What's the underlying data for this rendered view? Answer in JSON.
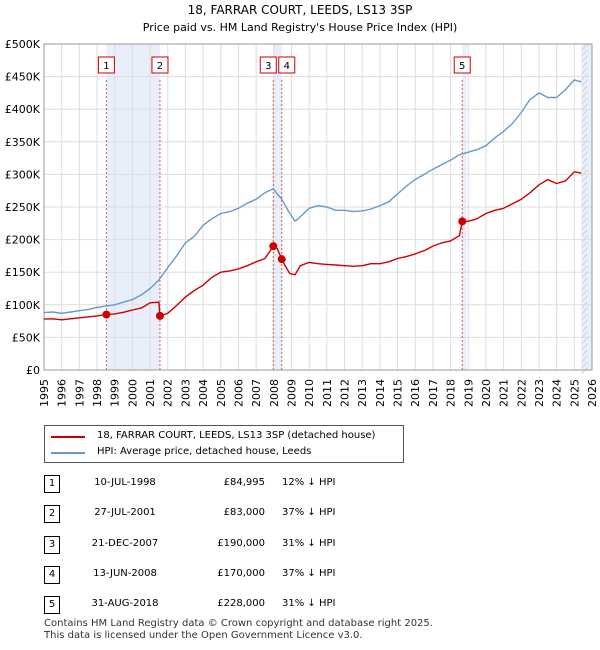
{
  "chart_data": {
    "type": "line",
    "title": "18, FARRAR COURT, LEEDS, LS13 3SP",
    "subtitle": "Price paid vs. HM Land Registry's House Price Index (HPI)",
    "xlabel": "",
    "ylabel": "",
    "xlim": [
      1995.0,
      2026.0
    ],
    "ylim": [
      0,
      500000
    ],
    "y_ticks": [
      0,
      50000,
      100000,
      150000,
      200000,
      250000,
      300000,
      350000,
      400000,
      450000,
      500000
    ],
    "y_tick_labels": [
      "£0",
      "£50K",
      "£100K",
      "£150K",
      "£200K",
      "£250K",
      "£300K",
      "£350K",
      "£400K",
      "£450K",
      "£500K"
    ],
    "x_ticks": [
      1995,
      1996,
      1997,
      1998,
      1999,
      2000,
      2001,
      2002,
      2003,
      2004,
      2005,
      2006,
      2007,
      2008,
      2009,
      2010,
      2011,
      2012,
      2013,
      2014,
      2015,
      2016,
      2017,
      2018,
      2019,
      2020,
      2021,
      2022,
      2023,
      2024,
      2025,
      2026
    ],
    "x_tick_labels": [
      "1995",
      "1996",
      "1997",
      "1998",
      "1999",
      "2000",
      "2001",
      "2002",
      "2003",
      "2004",
      "2005",
      "2006",
      "2007",
      "2008",
      "2009",
      "2010",
      "2011",
      "2012",
      "2013",
      "2014",
      "2015",
      "2016",
      "2017",
      "2018",
      "2019",
      "2020",
      "2021",
      "2022",
      "2023",
      "2024",
      "2025",
      "2026"
    ],
    "grid": true,
    "series": [
      {
        "name": "18, FARRAR COURT, LEEDS, LS13 3SP (detached house)",
        "color": "#cc0000",
        "x": [
          1995.0,
          1995.5,
          1996.0,
          1996.5,
          1997.0,
          1997.5,
          1998.0,
          1998.53,
          1999.0,
          1999.5,
          2000.0,
          2000.5,
          2001.0,
          2001.5,
          2001.56,
          2002.0,
          2002.5,
          2003.0,
          2003.5,
          2004.0,
          2004.5,
          2005.0,
          2005.5,
          2006.0,
          2006.5,
          2007.0,
          2007.5,
          2007.97,
          2008.2,
          2008.45,
          2008.6,
          2008.9,
          2009.2,
          2009.5,
          2010.0,
          2010.5,
          2011.0,
          2011.5,
          2012.0,
          2012.5,
          2013.0,
          2013.5,
          2014.0,
          2014.5,
          2015.0,
          2015.5,
          2016.0,
          2016.5,
          2017.0,
          2017.5,
          2018.0,
          2018.5,
          2018.66,
          2019.0,
          2019.5,
          2020.0,
          2020.5,
          2021.0,
          2021.5,
          2022.0,
          2022.5,
          2023.0,
          2023.5,
          2024.0,
          2024.5,
          2025.0,
          2025.4
        ],
        "values": [
          78000,
          78500,
          77000,
          78500,
          80000,
          81500,
          83000,
          84995,
          86000,
          88500,
          92000,
          95000,
          103000,
          104000,
          83000,
          87000,
          99000,
          112000,
          122000,
          130000,
          142000,
          150000,
          152000,
          155000,
          160000,
          166000,
          171000,
          190000,
          186000,
          170000,
          162000,
          148000,
          146000,
          160000,
          165000,
          163000,
          162000,
          161000,
          160000,
          159000,
          160000,
          163000,
          163000,
          166000,
          171000,
          174000,
          178000,
          183000,
          190000,
          195000,
          198000,
          206000,
          228000,
          228000,
          232000,
          240000,
          245000,
          248000,
          255000,
          262000,
          272000,
          284000,
          292000,
          286000,
          290000,
          304000,
          302000
        ]
      },
      {
        "name": "HPI: Average price, detached house, Leeds",
        "color": "#6699cc",
        "x": [
          1995.0,
          1995.5,
          1996.0,
          1996.5,
          1997.0,
          1997.5,
          1998.0,
          1998.5,
          1999.0,
          1999.5,
          2000.0,
          2000.5,
          2001.0,
          2001.5,
          2002.0,
          2002.5,
          2003.0,
          2003.5,
          2004.0,
          2004.5,
          2005.0,
          2005.5,
          2006.0,
          2006.5,
          2007.0,
          2007.5,
          2007.97,
          2008.2,
          2008.45,
          2008.8,
          2009.2,
          2009.5,
          2010.0,
          2010.5,
          2011.0,
          2011.5,
          2012.0,
          2012.5,
          2013.0,
          2013.5,
          2014.0,
          2014.5,
          2015.0,
          2015.5,
          2016.0,
          2016.5,
          2017.0,
          2017.5,
          2018.0,
          2018.5,
          2019.0,
          2019.5,
          2020.0,
          2020.5,
          2021.0,
          2021.5,
          2022.0,
          2022.5,
          2023.0,
          2023.5,
          2024.0,
          2024.5,
          2025.0,
          2025.4
        ],
        "values": [
          88000,
          89000,
          87000,
          89000,
          91000,
          93000,
          96000,
          98000,
          100000,
          104000,
          108000,
          115000,
          125000,
          138000,
          157000,
          175000,
          195000,
          205000,
          222000,
          232000,
          240000,
          243000,
          248000,
          256000,
          262000,
          272000,
          278000,
          270000,
          262000,
          245000,
          228000,
          235000,
          248000,
          252000,
          250000,
          245000,
          245000,
          243000,
          244000,
          247000,
          252000,
          258000,
          270000,
          282000,
          292000,
          300000,
          308000,
          315000,
          322000,
          330000,
          334000,
          338000,
          344000,
          356000,
          366000,
          378000,
          395000,
          415000,
          425000,
          418000,
          418000,
          430000,
          445000,
          442000
        ]
      }
    ],
    "sales": [
      {
        "label": "1",
        "x": 1998.53,
        "value": 84995
      },
      {
        "label": "2",
        "x": 2001.56,
        "value": 83000
      },
      {
        "label": "3",
        "x": 2007.97,
        "value": 190000
      },
      {
        "label": "4",
        "x": 2008.45,
        "value": 170000
      },
      {
        "label": "5",
        "x": 2018.66,
        "value": 228000
      }
    ],
    "shaded_ranges": [
      [
        1998.53,
        2001.56
      ],
      [
        2007.97,
        2008.45
      ],
      [
        2018.66,
        2018.9
      ],
      [
        2025.4,
        2026.0
      ]
    ]
  },
  "legend": {
    "property_label": "18, FARRAR COURT, LEEDS, LS13 3SP (detached house)",
    "hpi_label": "HPI: Average price, detached house, Leeds",
    "property_color": "#cc0000",
    "hpi_color": "#6699cc"
  },
  "transactions": [
    {
      "num": "1",
      "date": "10-JUL-1998",
      "price": "£84,995",
      "hpi": "12% ↓ HPI"
    },
    {
      "num": "2",
      "date": "27-JUL-2001",
      "price": "£83,000",
      "hpi": "37% ↓ HPI"
    },
    {
      "num": "3",
      "date": "21-DEC-2007",
      "price": "£190,000",
      "hpi": "31% ↓ HPI"
    },
    {
      "num": "4",
      "date": "13-JUN-2008",
      "price": "£170,000",
      "hpi": "37% ↓ HPI"
    },
    {
      "num": "5",
      "date": "31-AUG-2018",
      "price": "£228,000",
      "hpi": "31% ↓ HPI"
    }
  ],
  "footer": {
    "line1": "Contains HM Land Registry data © Crown copyright and database right 2025.",
    "line2": "This data is licensed under the Open Government Licence v3.0."
  }
}
